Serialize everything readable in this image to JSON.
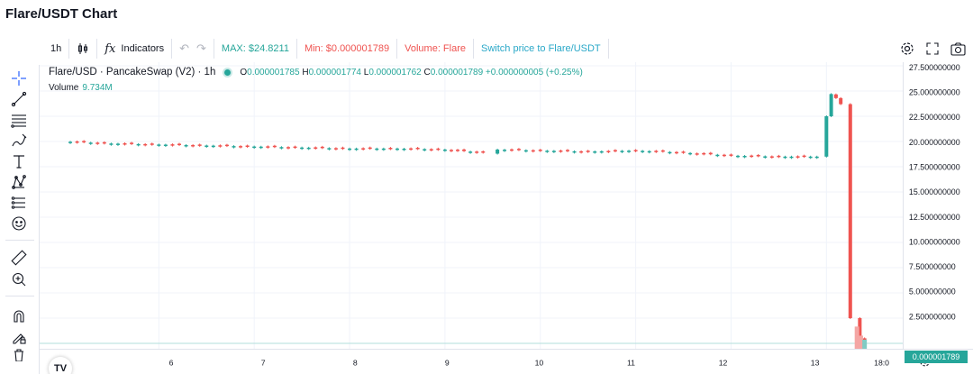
{
  "page_title": "Flare/USDT Chart",
  "toolbar": {
    "interval": "1h",
    "indicators_label": "Indicators",
    "max_label": "MAX: $24.8211",
    "min_label": "Min: $0.000001789",
    "volume_label": "Volume: Flare",
    "switch_label": "Switch price to Flare/USDT"
  },
  "legend": {
    "symbol": "Flare/USD · PancakeSwap (V2) · 1h",
    "open": "0.000001785",
    "high": "0.000001774",
    "low": "0.000001762",
    "close": "0.000001789",
    "change": "+0.000000005 (+0.25%)",
    "volume_label": "Volume",
    "volume_value": "9.734M"
  },
  "last_price_label": "0.000001789",
  "logo_text": "TV",
  "time_axis_tail": "18:0",
  "icons": {
    "left_toolbar": [
      "crosshair-icon",
      "trendline-icon",
      "fib-icon",
      "brush-icon",
      "text-icon",
      "pattern-icon",
      "forecast-icon",
      "emoji-icon",
      "ruler-icon",
      "zoom-in-icon",
      "magnet-icon",
      "lock-drawing-icon",
      "trash-icon"
    ],
    "right": [
      "settings-icon",
      "fullscreen-icon",
      "camera-icon"
    ]
  },
  "colors": {
    "up": "#26a69a",
    "down": "#ef5350",
    "grid": "#f0f3fa",
    "text": "#131722"
  },
  "chart_data": {
    "type": "candlestick",
    "title": "Flare/USD · PancakeSwap (V2) · 1h",
    "x_ticks": [
      "6",
      "7",
      "8",
      "9",
      "10",
      "11",
      "12",
      "13"
    ],
    "y_ticks": [
      "27.500000000",
      "25.000000000",
      "22.500000000",
      "20.000000000",
      "17.500000000",
      "15.000000000",
      "12.500000000",
      "10.000000000",
      "7.500000000",
      "5.000000000",
      "2.500000000"
    ],
    "ylim": [
      0,
      27.5
    ],
    "series": [
      {
        "x": [
          5.0,
          5.5,
          6.0,
          6.5,
          7.0,
          7.5,
          8.0,
          8.5,
          9.0,
          9.4,
          9.55,
          10.0,
          10.5,
          11.0,
          11.5,
          12.0,
          12.5,
          12.9,
          13.0,
          13.05,
          13.1,
          13.15,
          13.25,
          13.35,
          13.4
        ],
        "values": [
          20.0,
          19.8,
          19.7,
          19.6,
          19.5,
          19.4,
          19.3,
          19.3,
          19.2,
          18.9,
          19.2,
          19.1,
          19.0,
          19.1,
          18.9,
          18.6,
          18.5,
          18.5,
          22.5,
          24.7,
          24.3,
          23.7,
          2.5,
          0.5,
          1.789e-06
        ]
      }
    ],
    "volume": {
      "x": [
        13.32,
        13.36,
        13.4
      ],
      "values": [
        2.2,
        1.3,
        0.9
      ]
    },
    "grid": true
  }
}
